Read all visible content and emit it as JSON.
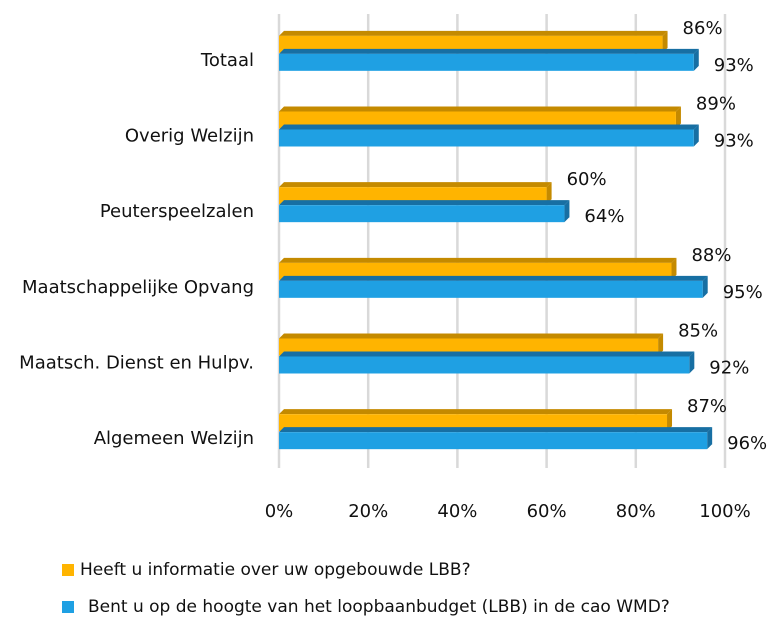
{
  "chart_data": {
    "type": "bar",
    "orientation": "horizontal",
    "categories": [
      "Totaal",
      "Overig Welzijn",
      "Peuterspeelzalen",
      "Maatschappelijke Opvang",
      "Maatsch. Dienst en Hulpv.",
      "Algemeen Welzijn"
    ],
    "series": [
      {
        "name": "Heeft u informatie over uw opgebouwde LBB?",
        "color": "#FFB400",
        "top_color": "#C48A00",
        "values": [
          86,
          89,
          60,
          88,
          85,
          87
        ],
        "value_labels": [
          "86%",
          "89%",
          "60%",
          "88%",
          "85%",
          "87%"
        ]
      },
      {
        "name": "Bent u op de hoogte van het loopbaanbudget (LBB) in de cao WMD?",
        "color": "#1FA0E3",
        "top_color": "#176FA3",
        "values": [
          93,
          93,
          64,
          95,
          92,
          96
        ],
        "value_labels": [
          "93%",
          "93%",
          "64%",
          "95%",
          "92%",
          "96%"
        ]
      }
    ],
    "xlim": [
      0,
      100
    ],
    "xticks": [
      {
        "value": 0,
        "label": "0%"
      },
      {
        "value": 20,
        "label": "20%"
      },
      {
        "value": 40,
        "label": "40%"
      },
      {
        "value": 60,
        "label": "60%"
      },
      {
        "value": 80,
        "label": "80%"
      },
      {
        "value": 100,
        "label": "100%"
      }
    ],
    "grid": true,
    "legend": "bottom"
  }
}
